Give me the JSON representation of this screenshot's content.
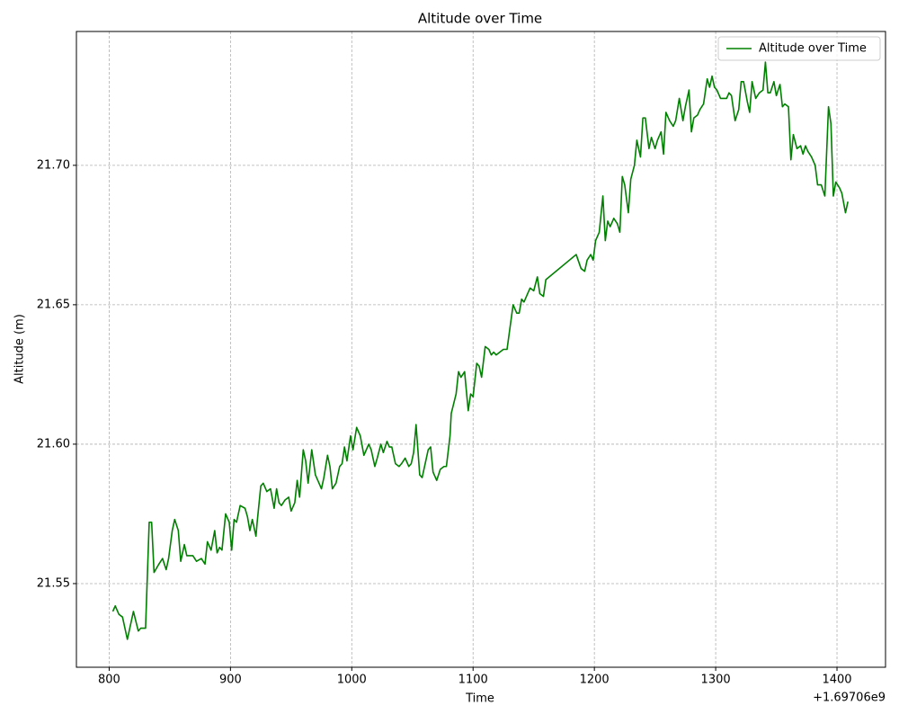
{
  "chart_data": {
    "type": "line",
    "title": "Altitude over Time",
    "x_label": "Time",
    "y_label": "Altitude (m)",
    "x_offset": "+1.69706e9",
    "x": [
      803,
      805,
      808,
      811,
      815,
      820,
      824,
      826,
      830,
      833,
      835,
      837,
      841,
      844,
      847,
      849,
      852,
      854,
      857,
      859,
      862,
      864,
      869,
      872,
      876,
      879,
      881,
      884,
      887,
      889,
      891,
      893,
      896,
      899,
      901,
      903,
      905,
      908,
      912,
      914,
      916,
      918,
      921,
      922,
      925,
      927,
      930,
      933,
      936,
      938,
      940,
      942,
      945,
      948,
      950,
      953,
      955,
      957,
      960,
      962,
      964,
      967,
      970,
      973,
      975,
      977,
      980,
      982,
      984,
      987,
      990,
      992,
      994,
      996,
      999,
      1001,
      1004,
      1007,
      1010,
      1012,
      1014,
      1016,
      1019,
      1021,
      1024,
      1026,
      1029,
      1031,
      1033,
      1036,
      1039,
      1041,
      1044,
      1047,
      1049,
      1051,
      1053,
      1056,
      1058,
      1061,
      1063,
      1065,
      1067,
      1070,
      1073,
      1076,
      1078,
      1081,
      1082,
      1086,
      1088,
      1090,
      1093,
      1096,
      1098,
      1100,
      1103,
      1105,
      1107,
      1110,
      1113,
      1115,
      1117,
      1119,
      1122,
      1125,
      1128,
      1133,
      1136,
      1138,
      1140,
      1142,
      1145,
      1147,
      1150,
      1153,
      1155,
      1158,
      1160,
      1185,
      1189,
      1192,
      1194,
      1197,
      1199,
      1201,
      1204,
      1207,
      1209,
      1211,
      1213,
      1216,
      1219,
      1221,
      1223,
      1225,
      1228,
      1230,
      1233,
      1235,
      1238,
      1240,
      1242,
      1245,
      1247,
      1250,
      1252,
      1255,
      1257,
      1259,
      1262,
      1265,
      1267,
      1270,
      1273,
      1275,
      1278,
      1280,
      1282,
      1285,
      1287,
      1290,
      1293,
      1295,
      1297,
      1299,
      1301,
      1304,
      1306,
      1309,
      1311,
      1313,
      1316,
      1319,
      1321,
      1323,
      1326,
      1328,
      1330,
      1333,
      1336,
      1339,
      1341,
      1343,
      1345,
      1348,
      1350,
      1353,
      1355,
      1357,
      1360,
      1362,
      1364,
      1367,
      1370,
      1372,
      1374,
      1376,
      1379,
      1382,
      1384,
      1387,
      1390,
      1393,
      1395,
      1397,
      1399,
      1402,
      1404,
      1407,
      1409
    ],
    "series": [
      {
        "name": "Altitude over Time",
        "color": "#008000",
        "values": [
          21.54,
          21.542,
          21.539,
          21.538,
          21.53,
          21.54,
          21.533,
          21.534,
          21.534,
          21.572,
          21.572,
          21.554,
          21.557,
          21.559,
          21.555,
          21.559,
          21.569,
          21.573,
          21.569,
          21.558,
          21.564,
          21.56,
          21.56,
          21.558,
          21.559,
          21.557,
          21.565,
          21.562,
          21.569,
          21.561,
          21.563,
          21.562,
          21.575,
          21.572,
          21.562,
          21.573,
          21.572,
          21.578,
          21.577,
          21.574,
          21.569,
          21.573,
          21.567,
          21.572,
          21.585,
          21.586,
          21.583,
          21.584,
          21.577,
          21.584,
          21.579,
          21.578,
          21.58,
          21.581,
          21.576,
          21.579,
          21.587,
          21.581,
          21.598,
          21.594,
          21.586,
          21.598,
          21.589,
          21.586,
          21.584,
          21.588,
          21.596,
          21.592,
          21.584,
          21.586,
          21.592,
          21.593,
          21.599,
          21.594,
          21.603,
          21.598,
          21.606,
          21.603,
          21.596,
          21.598,
          21.6,
          21.598,
          21.592,
          21.595,
          21.6,
          21.597,
          21.601,
          21.599,
          21.599,
          21.593,
          21.592,
          21.593,
          21.595,
          21.592,
          21.593,
          21.597,
          21.607,
          21.589,
          21.588,
          21.594,
          21.598,
          21.599,
          21.59,
          21.587,
          21.591,
          21.592,
          21.592,
          21.603,
          21.611,
          21.618,
          21.626,
          21.624,
          21.626,
          21.612,
          21.618,
          21.617,
          21.629,
          21.628,
          21.624,
          21.635,
          21.634,
          21.632,
          21.633,
          21.632,
          21.633,
          21.634,
          21.634,
          21.65,
          21.647,
          21.647,
          21.652,
          21.651,
          21.654,
          21.656,
          21.655,
          21.66,
          21.654,
          21.653,
          21.659,
          21.668,
          21.663,
          21.662,
          21.666,
          21.668,
          21.666,
          21.673,
          21.676,
          21.689,
          21.673,
          21.68,
          21.678,
          21.681,
          21.679,
          21.676,
          21.696,
          21.693,
          21.683,
          21.695,
          21.7,
          21.709,
          21.703,
          21.717,
          21.717,
          21.706,
          21.71,
          21.706,
          21.709,
          21.712,
          21.704,
          21.719,
          21.716,
          21.714,
          21.716,
          21.724,
          21.716,
          21.721,
          21.727,
          21.712,
          21.717,
          21.718,
          21.72,
          21.722,
          21.731,
          21.728,
          21.732,
          21.728,
          21.727,
          21.724,
          21.724,
          21.724,
          21.726,
          21.725,
          21.716,
          21.72,
          21.73,
          21.73,
          21.723,
          21.719,
          21.73,
          21.724,
          21.726,
          21.727,
          21.737,
          21.726,
          21.726,
          21.73,
          21.725,
          21.729,
          21.721,
          21.722,
          21.721,
          21.702,
          21.711,
          21.706,
          21.707,
          21.704,
          21.707,
          21.705,
          21.703,
          21.7,
          21.693,
          21.693,
          21.689,
          21.721,
          21.715,
          21.689,
          21.694,
          21.692,
          21.69,
          21.683,
          21.687
        ]
      }
    ],
    "xlim": [
      773,
      1440
    ],
    "ylim": [
      21.52,
      21.748
    ],
    "xticks": [
      800,
      900,
      1000,
      1100,
      1200,
      1300,
      1400
    ],
    "yticks": [
      21.55,
      {
        "value": 21.6,
        "label": "21.60"
      },
      21.65,
      {
        "value": 21.7,
        "label": "21.70"
      }
    ],
    "grid": true,
    "legend": "upper right"
  }
}
